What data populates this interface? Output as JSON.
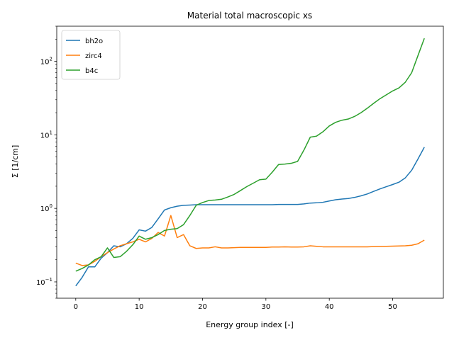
{
  "chart_data": {
    "type": "line",
    "title": "Material total macroscopic xs",
    "xlabel": "Energy group index [-]",
    "ylabel": "Σ [1/cm]",
    "xlim": [
      -3,
      58
    ],
    "ylim": [
      0.06,
      300
    ],
    "yscale": "log",
    "grid": false,
    "legend_position": "top-left",
    "x_ticks": [
      0,
      10,
      20,
      30,
      40,
      50
    ],
    "y_ticks": [
      {
        "value": 0.1,
        "base": "10",
        "exp": "−1"
      },
      {
        "value": 1,
        "base": "10",
        "exp": "0"
      },
      {
        "value": 10,
        "base": "10",
        "exp": "1"
      },
      {
        "value": 100,
        "base": "10",
        "exp": "2"
      }
    ],
    "series": [
      {
        "name": "bh2o",
        "color": "#1f77b4",
        "x": [
          0,
          1,
          2,
          3,
          4,
          5,
          6,
          7,
          8,
          9,
          10,
          11,
          12,
          13,
          14,
          15,
          16,
          17,
          18,
          19,
          20,
          21,
          22,
          23,
          24,
          25,
          26,
          27,
          28,
          29,
          30,
          31,
          32,
          33,
          34,
          35,
          36,
          37,
          38,
          39,
          40,
          41,
          42,
          43,
          44,
          45,
          46,
          47,
          48,
          49,
          50,
          51,
          52,
          53,
          54,
          55
        ],
        "values": [
          0.088,
          0.115,
          0.16,
          0.16,
          0.21,
          0.25,
          0.31,
          0.3,
          0.33,
          0.39,
          0.51,
          0.49,
          0.55,
          0.72,
          0.95,
          1.02,
          1.07,
          1.1,
          1.11,
          1.12,
          1.12,
          1.12,
          1.12,
          1.12,
          1.12,
          1.12,
          1.12,
          1.12,
          1.12,
          1.12,
          1.12,
          1.12,
          1.13,
          1.13,
          1.13,
          1.13,
          1.15,
          1.18,
          1.19,
          1.21,
          1.26,
          1.31,
          1.34,
          1.36,
          1.41,
          1.48,
          1.57,
          1.7,
          1.84,
          1.97,
          2.11,
          2.27,
          2.6,
          3.3,
          4.7,
          6.8
        ]
      },
      {
        "name": "zirc4",
        "color": "#ff7f0e",
        "x": [
          0,
          1,
          2,
          3,
          4,
          5,
          6,
          7,
          8,
          9,
          10,
          11,
          12,
          13,
          14,
          15,
          16,
          17,
          18,
          19,
          20,
          21,
          22,
          23,
          24,
          25,
          26,
          27,
          28,
          29,
          30,
          31,
          32,
          33,
          34,
          35,
          36,
          37,
          38,
          39,
          40,
          41,
          42,
          43,
          44,
          45,
          46,
          47,
          48,
          49,
          50,
          51,
          52,
          53,
          54,
          55
        ],
        "values": [
          0.18,
          0.167,
          0.17,
          0.19,
          0.22,
          0.25,
          0.28,
          0.31,
          0.33,
          0.35,
          0.38,
          0.35,
          0.39,
          0.47,
          0.42,
          0.8,
          0.4,
          0.44,
          0.31,
          0.285,
          0.29,
          0.29,
          0.3,
          0.29,
          0.29,
          0.292,
          0.295,
          0.295,
          0.295,
          0.295,
          0.295,
          0.298,
          0.298,
          0.3,
          0.298,
          0.298,
          0.3,
          0.31,
          0.305,
          0.3,
          0.3,
          0.3,
          0.3,
          0.3,
          0.3,
          0.3,
          0.3,
          0.302,
          0.304,
          0.305,
          0.306,
          0.308,
          0.31,
          0.315,
          0.33,
          0.37
        ]
      },
      {
        "name": "b4c",
        "color": "#2ca02c",
        "x": [
          0,
          1,
          2,
          3,
          4,
          5,
          6,
          7,
          8,
          9,
          10,
          11,
          12,
          13,
          14,
          15,
          16,
          17,
          18,
          19,
          20,
          21,
          22,
          23,
          24,
          25,
          26,
          27,
          28,
          29,
          30,
          31,
          32,
          33,
          34,
          35,
          36,
          37,
          38,
          39,
          40,
          41,
          42,
          43,
          44,
          45,
          46,
          47,
          48,
          49,
          50,
          51,
          52,
          53,
          54,
          55
        ],
        "values": [
          0.14,
          0.152,
          0.17,
          0.2,
          0.22,
          0.29,
          0.215,
          0.22,
          0.26,
          0.32,
          0.42,
          0.38,
          0.4,
          0.44,
          0.5,
          0.52,
          0.53,
          0.6,
          0.8,
          1.1,
          1.2,
          1.28,
          1.3,
          1.33,
          1.43,
          1.55,
          1.75,
          1.98,
          2.2,
          2.45,
          2.5,
          3.1,
          3.95,
          4.0,
          4.1,
          4.35,
          6.2,
          9.3,
          9.6,
          11.0,
          13.2,
          14.8,
          15.8,
          16.4,
          17.8,
          20.0,
          23.0,
          26.8,
          31.0,
          35.0,
          39.5,
          43.5,
          52.0,
          70.0,
          120.0,
          205.0
        ]
      }
    ]
  }
}
